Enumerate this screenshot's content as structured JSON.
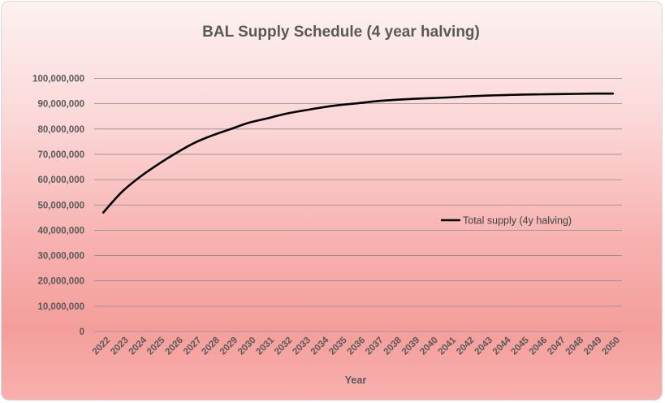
{
  "chart_data": {
    "type": "line",
    "title": "BAL Supply Schedule (4 year halving)",
    "xlabel": "Year",
    "ylabel": "",
    "ylim": [
      0,
      100000000
    ],
    "y_ticks": [
      "0",
      "10,000,000",
      "20,000,000",
      "30,000,000",
      "40,000,000",
      "50,000,000",
      "60,000,000",
      "70,000,000",
      "80,000,000",
      "90,000,000",
      "100,000,000"
    ],
    "y_tick_values": [
      0,
      10000000,
      20000000,
      30000000,
      40000000,
      50000000,
      60000000,
      70000000,
      80000000,
      90000000,
      100000000
    ],
    "categories": [
      "2022",
      "2023",
      "2024",
      "2025",
      "2026",
      "2027",
      "2028",
      "2029",
      "2030",
      "2031",
      "2032",
      "2033",
      "2034",
      "2035",
      "2036",
      "2037",
      "2038",
      "2039",
      "2040",
      "2041",
      "2042",
      "2043",
      "2044",
      "2045",
      "2046",
      "2047",
      "2048",
      "2049",
      "2050"
    ],
    "grid": true,
    "legend_position": "right",
    "colors": {
      "line": "#000000",
      "grid": "#8c8c8c"
    },
    "series": [
      {
        "name": "Total supply (4y halving)",
        "values": [
          47000000,
          55000000,
          61000000,
          66000000,
          70500000,
          74500000,
          77500000,
          80000000,
          82500000,
          84200000,
          86000000,
          87300000,
          88500000,
          89500000,
          90200000,
          91000000,
          91500000,
          91900000,
          92200000,
          92500000,
          92900000,
          93200000,
          93400000,
          93600000,
          93700000,
          93800000,
          93900000,
          94000000,
          94000000
        ]
      }
    ]
  }
}
